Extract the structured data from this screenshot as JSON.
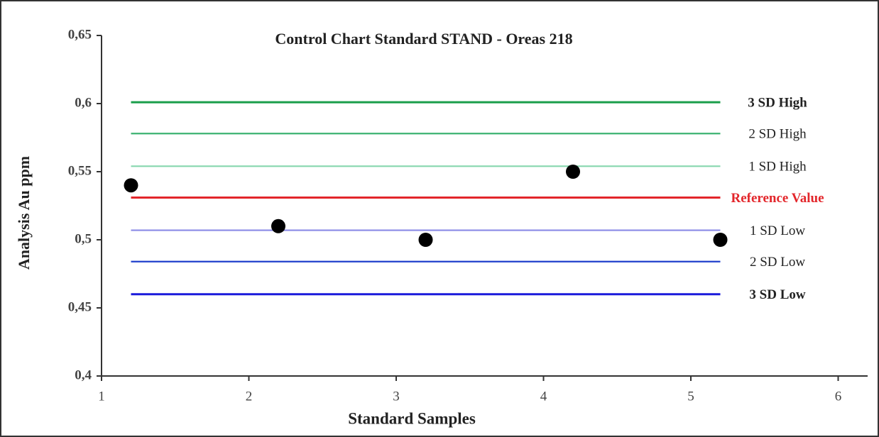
{
  "chart_data": {
    "type": "scatter",
    "title": "Control Chart Standard STAND - Oreas 218",
    "x_label": "Standard Samples",
    "y_label": "Analysis Au ppm",
    "x": [
      1.2,
      2.2,
      3.2,
      4.2,
      5.2
    ],
    "values": [
      0.54,
      0.51,
      0.5,
      0.55,
      0.5
    ],
    "color": "#000000",
    "xlim": [
      1,
      6.2
    ],
    "xticks": [
      1,
      2,
      3,
      4,
      5,
      6
    ],
    "ylim": [
      0.4,
      0.65
    ],
    "yticks": [
      {
        "value": 0.4,
        "label": "0,4"
      },
      {
        "value": 0.45,
        "label": "0,45"
      },
      {
        "value": 0.5,
        "label": "0,5"
      },
      {
        "value": 0.55,
        "label": "0,55"
      },
      {
        "value": 0.6,
        "label": "0,6"
      },
      {
        "value": 0.65,
        "label": "0,65"
      }
    ],
    "line_x": [
      1.2,
      5.2
    ],
    "reference_lines": [
      {
        "name": "3 SD High",
        "value": 0.601,
        "color": "#1a9e4a",
        "bold": true
      },
      {
        "name": "2 SD High",
        "value": 0.578,
        "color": "#3cb371",
        "bold": false
      },
      {
        "name": "1 SD High",
        "value": 0.554,
        "color": "#86d6ae",
        "bold": false
      },
      {
        "name": "Reference Value",
        "value": 0.531,
        "color": "#e3262b",
        "bold": true,
        "label_color": "#e3262b"
      },
      {
        "name": "1 SD Low",
        "value": 0.507,
        "color": "#8a8ae6",
        "bold": false
      },
      {
        "name": "2 SD Low",
        "value": 0.484,
        "color": "#2040cc",
        "bold": false
      },
      {
        "name": "3 SD Low",
        "value": 0.46,
        "color": "#1a1adb",
        "bold": true
      }
    ]
  }
}
